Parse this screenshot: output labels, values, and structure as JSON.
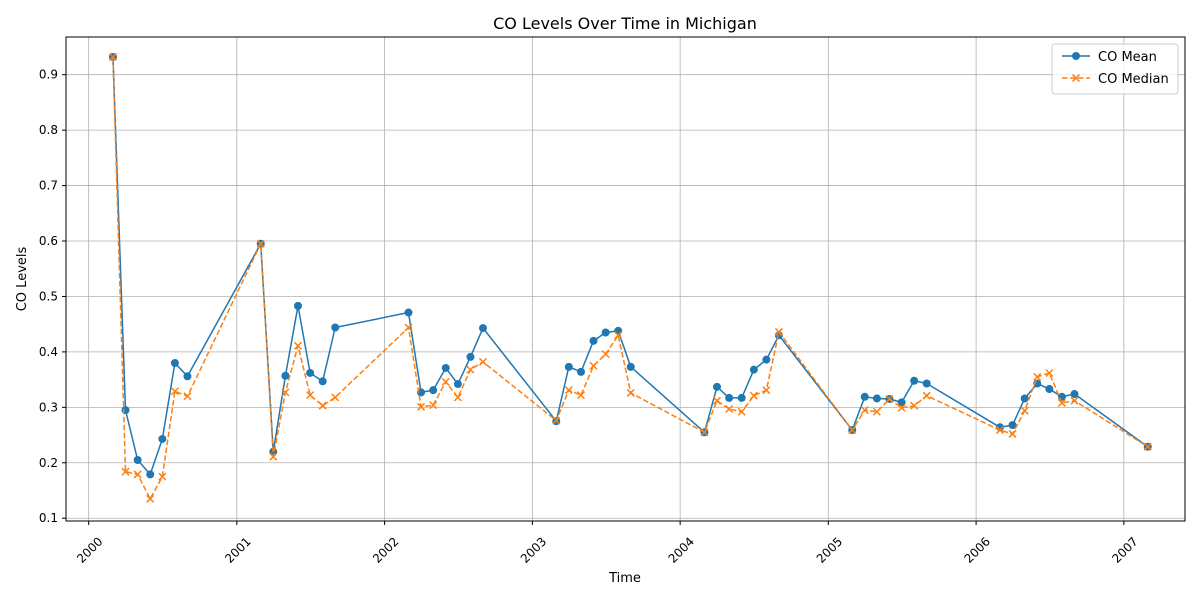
{
  "chart_data": {
    "type": "line",
    "title": "CO Levels Over Time in Michigan",
    "xlabel": "Time",
    "ylabel": "CO Levels",
    "x_tick_labels": [
      "2000",
      "2001",
      "2002",
      "2003",
      "2004",
      "2005",
      "2006",
      "2007"
    ],
    "y_tick_labels": [
      "0.1",
      "0.2",
      "0.3",
      "0.4",
      "0.5",
      "0.6",
      "0.7",
      "0.8",
      "0.9"
    ],
    "xlim": [
      "1999-11-06",
      "2007-06-01"
    ],
    "ylim": [
      0.095,
      0.968
    ],
    "grid": true,
    "legend_position": "top-right",
    "x": [
      "2000-03-01",
      "2000-04-01",
      "2000-05-01",
      "2000-06-01",
      "2000-07-01",
      "2000-08-01",
      "2000-09-01",
      "2001-03-01",
      "2001-04-01",
      "2001-05-01",
      "2001-06-01",
      "2001-07-01",
      "2001-08-01",
      "2001-09-01",
      "2002-03-01",
      "2002-04-01",
      "2002-05-01",
      "2002-06-01",
      "2002-07-01",
      "2002-08-01",
      "2002-09-01",
      "2003-03-01",
      "2003-04-01",
      "2003-05-01",
      "2003-06-01",
      "2003-07-01",
      "2003-08-01",
      "2003-09-01",
      "2004-03-01",
      "2004-04-01",
      "2004-05-01",
      "2004-06-01",
      "2004-07-01",
      "2004-08-01",
      "2004-09-01",
      "2005-03-01",
      "2005-04-01",
      "2005-05-01",
      "2005-06-01",
      "2005-07-01",
      "2005-08-01",
      "2005-09-01",
      "2006-03-01",
      "2006-04-01",
      "2006-05-01",
      "2006-06-01",
      "2006-07-01",
      "2006-08-01",
      "2006-09-01",
      "2007-03-01"
    ],
    "series": [
      {
        "name": "CO Mean",
        "color": "#1f77b4",
        "style": "solid",
        "marker": "circle",
        "values": [
          0.932,
          0.295,
          0.205,
          0.179,
          0.243,
          0.38,
          0.356,
          0.595,
          0.22,
          0.357,
          0.483,
          0.362,
          0.347,
          0.444,
          0.471,
          0.327,
          0.331,
          0.371,
          0.342,
          0.391,
          0.443,
          0.275,
          0.373,
          0.364,
          0.42,
          0.435,
          0.438,
          0.373,
          0.255,
          0.337,
          0.317,
          0.317,
          0.368,
          0.386,
          0.43,
          0.259,
          0.319,
          0.316,
          0.315,
          0.309,
          0.348,
          0.343,
          0.264,
          0.268,
          0.316,
          0.343,
          0.333,
          0.319,
          0.324,
          0.229
        ]
      },
      {
        "name": "CO Median",
        "color": "#ff7f0e",
        "style": "dashed",
        "marker": "x",
        "values": [
          0.932,
          0.184,
          0.179,
          0.135,
          0.175,
          0.329,
          0.32,
          0.595,
          0.211,
          0.327,
          0.411,
          0.322,
          0.303,
          0.318,
          0.444,
          0.301,
          0.304,
          0.346,
          0.318,
          0.368,
          0.382,
          0.276,
          0.331,
          0.322,
          0.375,
          0.396,
          0.43,
          0.326,
          0.255,
          0.312,
          0.297,
          0.292,
          0.321,
          0.331,
          0.436,
          0.259,
          0.295,
          0.292,
          0.315,
          0.299,
          0.303,
          0.321,
          0.259,
          0.252,
          0.294,
          0.355,
          0.362,
          0.308,
          0.312,
          0.229
        ]
      }
    ]
  }
}
